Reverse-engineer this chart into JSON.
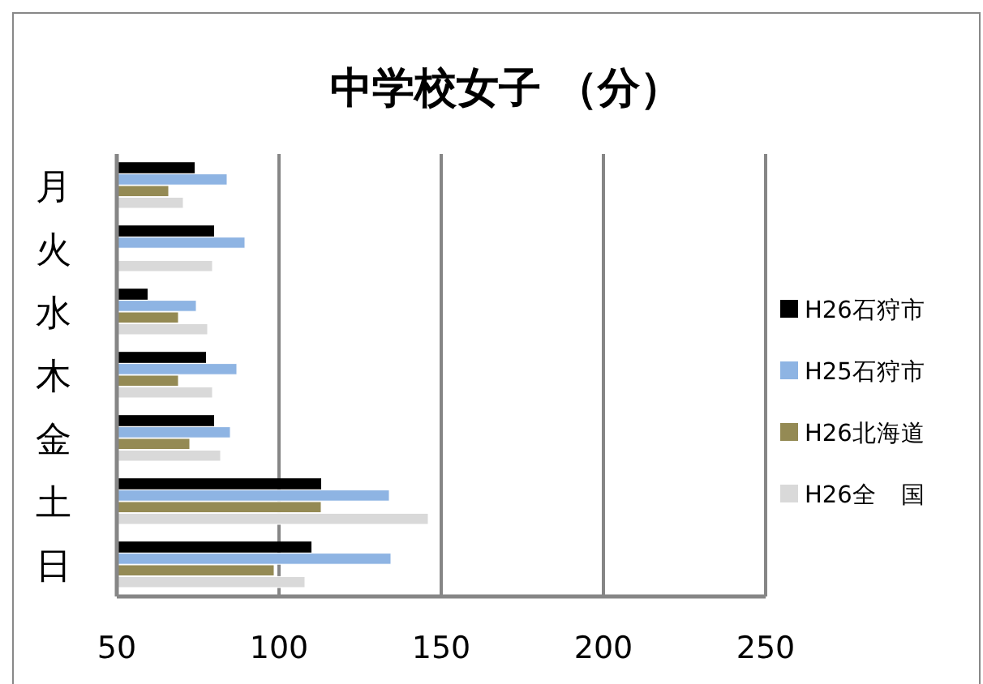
{
  "chart_data": {
    "type": "bar",
    "orientation": "horizontal",
    "title": "中学校女子 （分）",
    "categories": [
      "月",
      "火",
      "水",
      "木",
      "金",
      "土",
      "日"
    ],
    "series": [
      {
        "name": "H26石狩市",
        "color": "#000000",
        "values": [
          74,
          80,
          59.5,
          77.5,
          80,
          113,
          110
        ]
      },
      {
        "name": "H25石狩市",
        "color": "#8eb4e3",
        "values": [
          84,
          89.5,
          74.5,
          87,
          85,
          134,
          134.5
        ]
      },
      {
        "name": "H26北海道",
        "color": "#948a54",
        "values": [
          66,
          null,
          69,
          69,
          72.5,
          113,
          98.5
        ]
      },
      {
        "name": "H26全　国",
        "color": "#d9d9d9",
        "values": [
          70.5,
          79.5,
          78,
          79.5,
          82,
          146,
          108
        ]
      }
    ],
    "xlim": [
      50,
      250
    ],
    "xticks": [
      50,
      100,
      150,
      200,
      250
    ],
    "grid": "x",
    "legend": "right"
  }
}
